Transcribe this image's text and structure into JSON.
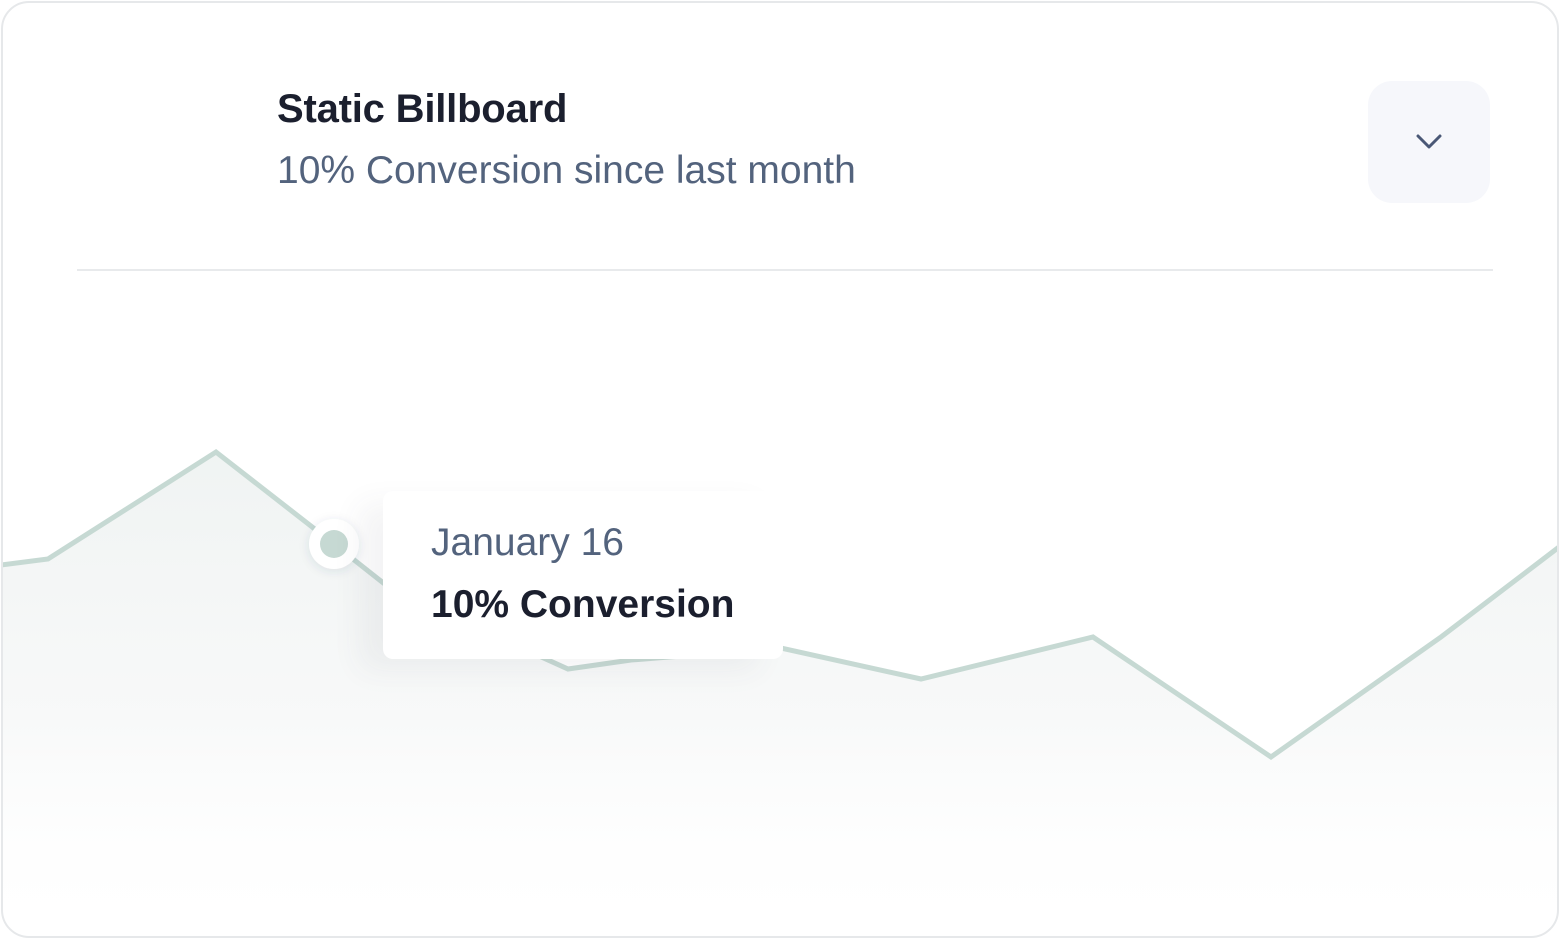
{
  "card": {
    "title": "Static Billboard",
    "subtitle": "10% Conversion since last month",
    "dropdown_icon": "chevron-down-icon"
  },
  "tooltip": {
    "date": "January 16",
    "value": "10% Conversion"
  },
  "colors": {
    "line": "#c6d9d3",
    "title": "#1b1f2e",
    "muted": "#53637d",
    "button_bg": "#f6f7fb"
  },
  "chart_data": {
    "type": "area",
    "series": [
      {
        "values": [
          0.62,
          0.6,
          0.88,
          0.55,
          0.35,
          0.37,
          0.4,
          0.33,
          0.42,
          0.18,
          0.42,
          0.68
        ]
      }
    ],
    "highlighted_index": 3,
    "grid": false
  }
}
